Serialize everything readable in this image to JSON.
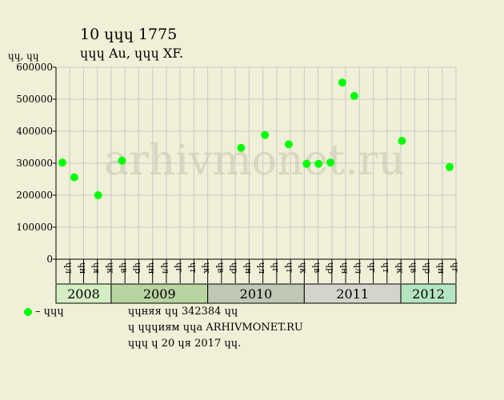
{
  "header": {
    "title": "10 ɥɥɥ 1775",
    "subtitle": "ɥɥɥ Au, ɥɥɥ XF."
  },
  "notes": {
    "legend_label": "– ɥɥɥ",
    "line1": "ɥɥняя ɥɥ 342384 ɥɥ",
    "line2": "ɥ ɥɥɥиям ɥɥа ARHIVMONET.RU",
    "line3": "ɥɥɥ ɥ 20 ɥя 2017 ɥɥ."
  },
  "watermark": "arhivmonet.ru",
  "colors": {
    "background": "#f0f0d8",
    "grid": "#c8c8c8",
    "point": "#00ff00",
    "watermark": "#d8d8c0"
  },
  "chart_data": {
    "type": "scatter",
    "ylabel": "ɥɥ, ɥɥ",
    "ylim": [
      0,
      600000
    ],
    "yticks": [
      0,
      100000,
      200000,
      300000,
      400000,
      500000,
      600000
    ],
    "grid": true,
    "columns": [
      "ɥл",
      "ɥн",
      "ɥя",
      "ɥк",
      "ɥв",
      "ɥр",
      "ɥн",
      "ɥл",
      "ɥг",
      "ɥт",
      "ɥк",
      "ɥв",
      "ɥр",
      "ɥн",
      "ɥл",
      "ɥг",
      "ɥт",
      "ɥк",
      "ɥв",
      "ɥр",
      "ɥн",
      "ɥл",
      "ɥг",
      "ɥт",
      "ɥк",
      "ɥв",
      "ɥр",
      "ɥн",
      "ɥг"
    ],
    "years": [
      {
        "label": "2008",
        "span": 4,
        "color": "#d4eec4"
      },
      {
        "label": "2009",
        "span": 7,
        "color": "#b8d4a0"
      },
      {
        "label": "2010",
        "span": 7,
        "color": "#c0c8b4"
      },
      {
        "label": "2011",
        "span": 7,
        "color": "#d4d4cc"
      },
      {
        "label": "2012",
        "span": 4,
        "color": "#b4e4c0"
      }
    ],
    "points": [
      {
        "col": 0,
        "value": 302000
      },
      {
        "col": 1,
        "value": 256000
      },
      {
        "col": 3,
        "value": 200000
      },
      {
        "col": 5,
        "value": 308000
      },
      {
        "col": 15,
        "value": 348000
      },
      {
        "col": 17,
        "value": 388000
      },
      {
        "col": 19,
        "value": 359000
      },
      {
        "col": 20.5,
        "value": 298000
      },
      {
        "col": 21.5,
        "value": 298000
      },
      {
        "col": 22.5,
        "value": 302000
      },
      {
        "col": 23.5,
        "value": 552000
      },
      {
        "col": 24.5,
        "value": 510000
      },
      {
        "col": 28.5,
        "value": 370000
      },
      {
        "col": 32.5,
        "value": 288000
      }
    ],
    "legend": "bottom-left"
  }
}
